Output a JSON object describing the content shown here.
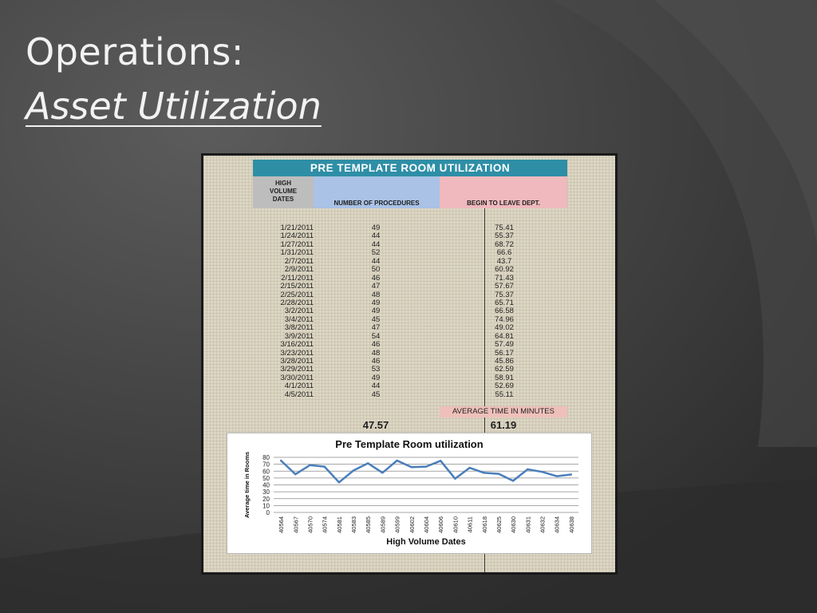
{
  "slide": {
    "title_line1": "Operations:",
    "title_line2": "Asset Utilization"
  },
  "table": {
    "banner": "PRE TEMPLATE ROOM UTILIZATION",
    "headers": {
      "dates": [
        "HIGH",
        "VOLUME",
        "DATES"
      ],
      "procedures": "NUMBER OF PROCEDURES",
      "time": "BEGIN TO LEAVE DEPT."
    },
    "rows": [
      {
        "date": "1/21/2011",
        "procedures": "49",
        "time": "75.41"
      },
      {
        "date": "1/24/2011",
        "procedures": "44",
        "time": "55.37"
      },
      {
        "date": "1/27/2011",
        "procedures": "44",
        "time": "68.72"
      },
      {
        "date": "1/31/2011",
        "procedures": "52",
        "time": "66.6"
      },
      {
        "date": "2/7/2011",
        "procedures": "44",
        "time": "43.7"
      },
      {
        "date": "2/9/2011",
        "procedures": "50",
        "time": "60.92"
      },
      {
        "date": "2/11/2011",
        "procedures": "46",
        "time": "71.43"
      },
      {
        "date": "2/15/2011",
        "procedures": "47",
        "time": "57.67"
      },
      {
        "date": "2/25/2011",
        "procedures": "48",
        "time": "75.37"
      },
      {
        "date": "2/28/2011",
        "procedures": "49",
        "time": "65.71"
      },
      {
        "date": "3/2/2011",
        "procedures": "49",
        "time": "66.58"
      },
      {
        "date": "3/4/2011",
        "procedures": "45",
        "time": "74.96"
      },
      {
        "date": "3/8/2011",
        "procedures": "47",
        "time": "49.02"
      },
      {
        "date": "3/9/2011",
        "procedures": "54",
        "time": "64.81"
      },
      {
        "date": "3/16/2011",
        "procedures": "46",
        "time": "57.49"
      },
      {
        "date": "3/23/2011",
        "procedures": "48",
        "time": "56.17"
      },
      {
        "date": "3/28/2011",
        "procedures": "46",
        "time": "45.86"
      },
      {
        "date": "3/29/2011",
        "procedures": "53",
        "time": "62.59"
      },
      {
        "date": "3/30/2011",
        "procedures": "49",
        "time": "58.91"
      },
      {
        "date": "4/1/2011",
        "procedures": "44",
        "time": "52.69"
      },
      {
        "date": "4/5/2011",
        "procedures": "45",
        "time": "55.11"
      }
    ],
    "avg_label": "AVERAGE TIME IN MINUTES",
    "avg_procedures": "47.57",
    "avg_time": "61.19"
  },
  "chart_data": {
    "type": "line",
    "title": "Pre Template Room utilization",
    "xlabel": "High Volume  Dates",
    "ylabel": "Average time in Rooms",
    "ylim": [
      0,
      80
    ],
    "yticks": [
      0,
      10,
      20,
      30,
      40,
      50,
      60,
      70,
      80
    ],
    "grid": true,
    "categories": [
      "40564",
      "40567",
      "40570",
      "40574",
      "40581",
      "40583",
      "40585",
      "40589",
      "40599",
      "40602",
      "40604",
      "40606",
      "40610",
      "40611",
      "40618",
      "40625",
      "40630",
      "40631",
      "40632",
      "40634",
      "40638"
    ],
    "series": [
      {
        "values": [
          75.41,
          55.37,
          68.72,
          66.6,
          43.7,
          60.92,
          71.43,
          57.67,
          75.37,
          65.71,
          66.58,
          74.96,
          49.02,
          64.81,
          57.49,
          56.17,
          45.86,
          62.59,
          58.91,
          52.69,
          55.11
        ],
        "color": "#4a7ebb"
      }
    ]
  },
  "colors": {
    "banner": "#2e8ea6",
    "dates_header": "#bdbdbd",
    "procedures_header": "#a9c2e6",
    "time_header": "#efb9bd",
    "line": "#4a7ebb"
  }
}
